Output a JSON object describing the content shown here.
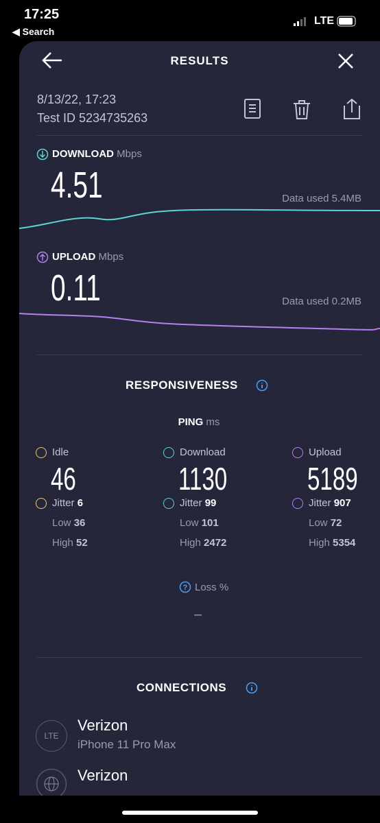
{
  "status_bar": {
    "time": "17:25",
    "back": "Search",
    "network": "LTE"
  },
  "header": {
    "title": "RESULTS"
  },
  "test": {
    "date": "8/13/22, 17:23",
    "id": "Test ID 5234735263"
  },
  "download": {
    "label": "DOWNLOAD",
    "unit": "Mbps",
    "value": "4.51",
    "data_used": "Data used 5.4MB"
  },
  "upload": {
    "label": "UPLOAD",
    "unit": "Mbps",
    "value": "0.11",
    "data_used": "Data used 0.2MB"
  },
  "responsiveness": {
    "title": "RESPONSIVENESS",
    "ping_label": "PING",
    "ping_unit": "ms",
    "columns": [
      {
        "label": "Idle",
        "value": "46",
        "jitter_label": "Jitter",
        "jitter": "6",
        "low_label": "Low",
        "low": "36",
        "high_label": "High",
        "high": "52"
      },
      {
        "label": "Download",
        "value": "1130",
        "jitter_label": "Jitter",
        "jitter": "99",
        "low_label": "Low",
        "low": "101",
        "high_label": "High",
        "high": "2472"
      },
      {
        "label": "Upload",
        "value": "5189",
        "jitter_label": "Jitter",
        "jitter": "907",
        "low_label": "Low",
        "low": "72",
        "high_label": "High",
        "high": "5354"
      }
    ],
    "loss_label": "Loss %",
    "loss_value": "–"
  },
  "connections": {
    "title": "CONNECTIONS",
    "items": [
      {
        "icon": "LTE",
        "name": "Verizon",
        "device": "iPhone 11 Pro Max"
      },
      {
        "name": "Verizon"
      }
    ]
  }
}
